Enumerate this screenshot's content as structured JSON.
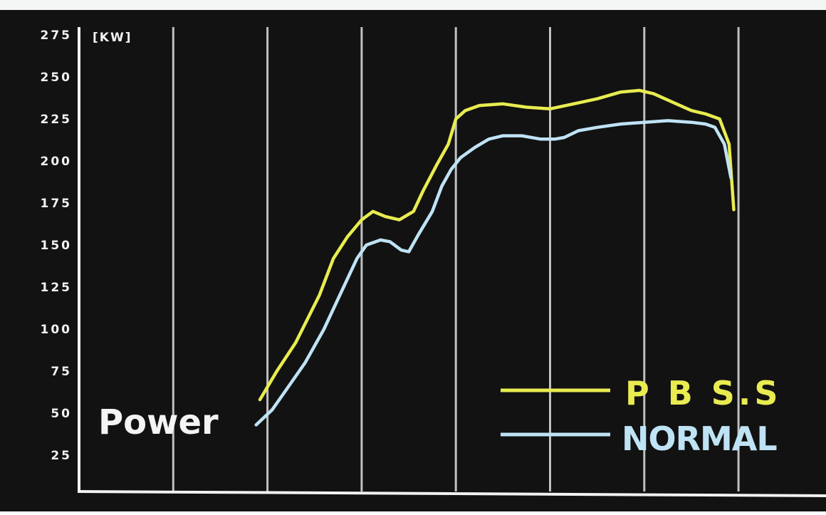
{
  "chart_data": {
    "type": "line",
    "title": "",
    "label": "Power",
    "unit_label": "[KW]",
    "xlabel": "",
    "ylabel": "",
    "ylim": [
      0,
      275
    ],
    "xlim": [
      0,
      8
    ],
    "yticks": [
      25,
      50,
      75,
      100,
      125,
      150,
      175,
      200,
      225,
      250,
      275
    ],
    "vertical_gridlines": [
      1,
      2,
      3,
      4,
      5,
      6,
      7
    ],
    "grid": true,
    "legend_position": "bottom-right",
    "series": [
      {
        "name": "P B S.S",
        "color": "#e8ec50",
        "points": [
          [
            1.92,
            58
          ],
          [
            2.1,
            75
          ],
          [
            2.3,
            92
          ],
          [
            2.55,
            120
          ],
          [
            2.7,
            142
          ],
          [
            2.85,
            155
          ],
          [
            3.0,
            165
          ],
          [
            3.12,
            170
          ],
          [
            3.25,
            167
          ],
          [
            3.4,
            165
          ],
          [
            3.55,
            170
          ],
          [
            3.65,
            182
          ],
          [
            3.8,
            198
          ],
          [
            3.92,
            210
          ],
          [
            4.0,
            225
          ],
          [
            4.1,
            230
          ],
          [
            4.25,
            233
          ],
          [
            4.5,
            234
          ],
          [
            4.75,
            232
          ],
          [
            5.0,
            231
          ],
          [
            5.25,
            234
          ],
          [
            5.5,
            237
          ],
          [
            5.75,
            241
          ],
          [
            5.95,
            242
          ],
          [
            6.1,
            240
          ],
          [
            6.3,
            235
          ],
          [
            6.5,
            230
          ],
          [
            6.65,
            228
          ],
          [
            6.8,
            225
          ],
          [
            6.9,
            210
          ],
          [
            6.95,
            171
          ]
        ]
      },
      {
        "name": "NORMAL",
        "color": "#bfe3f5",
        "points": [
          [
            1.88,
            43
          ],
          [
            2.05,
            52
          ],
          [
            2.2,
            64
          ],
          [
            2.4,
            80
          ],
          [
            2.6,
            100
          ],
          [
            2.75,
            118
          ],
          [
            2.95,
            142
          ],
          [
            3.05,
            150
          ],
          [
            3.2,
            153
          ],
          [
            3.3,
            152
          ],
          [
            3.42,
            147
          ],
          [
            3.5,
            146
          ],
          [
            3.6,
            156
          ],
          [
            3.75,
            170
          ],
          [
            3.85,
            185
          ],
          [
            3.95,
            195
          ],
          [
            4.05,
            202
          ],
          [
            4.2,
            208
          ],
          [
            4.35,
            213
          ],
          [
            4.5,
            215
          ],
          [
            4.7,
            215
          ],
          [
            4.9,
            213
          ],
          [
            5.05,
            213
          ],
          [
            5.15,
            214
          ],
          [
            5.3,
            218
          ],
          [
            5.5,
            220
          ],
          [
            5.75,
            222
          ],
          [
            6.0,
            223
          ],
          [
            6.25,
            224
          ],
          [
            6.5,
            223
          ],
          [
            6.65,
            222
          ],
          [
            6.75,
            220
          ],
          [
            6.85,
            210
          ],
          [
            6.92,
            190
          ]
        ]
      }
    ]
  },
  "colors": {
    "background": "#121212",
    "axis": "#f2f2f2",
    "grid": "#cfcfcf",
    "text": "#f2f2f2"
  }
}
